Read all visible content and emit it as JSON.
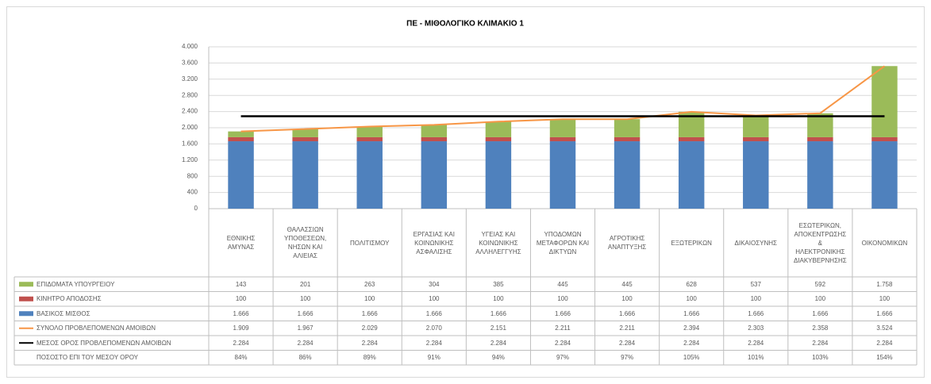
{
  "chart_data": {
    "type": "bar",
    "title": "ΠΕ - ΜΙΘΟΛΟΓΙΚΟ ΚΛΙΜΑΚΙΟ 1",
    "categories": [
      "ΕΘΝΙΚΗΣ ΑΜΥΝΑΣ",
      "ΘΑΛΑΣΣΙΩΝ ΥΠΟΘΕΣΕΩΝ, ΝΗΣΩΝ ΚΑΙ ΑΛΙΕΙΑΣ",
      "ΠΟΛΙΤΙΣΜΟΥ",
      "ΕΡΓΑΣΙΑΣ ΚΑΙ ΚΟΙΝΩΝΙΚΗΣ ΑΣΦΑΛΙΣΗΣ",
      "ΥΓΕΙΑΣ ΚΑΙ ΚΟΙΝΩΝΙΚΗΣ ΑΛΛΗΛΕΓΓΥΗΣ",
      "ΥΠΟΔΟΜΩΝ ΜΕΤΑΦΟΡΩΝ ΚΑΙ ΔΙΚΤΥΩΝ",
      "ΑΓΡΟΤΙΚΗΣ ΑΝΑΠΤΥΞΗΣ",
      "ΕΞΩΤΕΡΙΚΩΝ",
      "ΔΙΚΑΙΟΣΥΝΗΣ",
      "ΕΣΩΤΕΡΙΚΩΝ, ΑΠΟΚΕΝΤΡΩΣΗΣ & ΗΛΕΚΤΡΟΝΙΚΗΣ ΔΙΑΚΥΒΕΡΝΗΣΗΣ",
      "ΟΙΚΟΝΟΜΙΚΩΝ"
    ],
    "series": [
      {
        "name": "ΕΠΙΔΟΜΑΤΑ ΥΠΟΥΡΓΕΙΟΥ",
        "type": "bar",
        "color": "#9bbb59",
        "values": [
          143,
          201,
          263,
          304,
          385,
          445,
          445,
          628,
          537,
          592,
          1758
        ],
        "value_labels": [
          "143",
          "201",
          "263",
          "304",
          "385",
          "445",
          "445",
          "628",
          "537",
          "592",
          "1.758"
        ]
      },
      {
        "name": "ΚΙΝΗΤΡΟ ΑΠΟΔΟΣΗΣ",
        "type": "bar",
        "color": "#c0504d",
        "values": [
          100,
          100,
          100,
          100,
          100,
          100,
          100,
          100,
          100,
          100,
          100
        ],
        "value_labels": [
          "100",
          "100",
          "100",
          "100",
          "100",
          "100",
          "100",
          "100",
          "100",
          "100",
          "100"
        ]
      },
      {
        "name": "ΒΑΣΙΚΟΣ ΜΙΣΘΟΣ",
        "type": "bar",
        "color": "#4f81bd",
        "values": [
          1666,
          1666,
          1666,
          1666,
          1666,
          1666,
          1666,
          1666,
          1666,
          1666,
          1666
        ],
        "value_labels": [
          "1.666",
          "1.666",
          "1.666",
          "1.666",
          "1.666",
          "1.666",
          "1.666",
          "1.666",
          "1.666",
          "1.666",
          "1.666"
        ]
      },
      {
        "name": "ΣΥΝΟΛΟ ΠΡΟΒΛΕΠΟΜΕΝΩΝ ΑΜΟΙΒΩΝ",
        "type": "line",
        "color": "#f79646",
        "values": [
          1909,
          1967,
          2029,
          2070,
          2151,
          2211,
          2211,
          2394,
          2303,
          2358,
          3524
        ],
        "value_labels": [
          "1.909",
          "1.967",
          "2.029",
          "2.070",
          "2.151",
          "2.211",
          "2.211",
          "2.394",
          "2.303",
          "2.358",
          "3.524"
        ]
      },
      {
        "name": "ΜΕΣΟΣ ΟΡΟΣ ΠΡΟΒΛΕΠΟΜΕΝΩΝ ΑΜΟΙΒΩΝ",
        "type": "line",
        "color": "#000000",
        "values": [
          2284,
          2284,
          2284,
          2284,
          2284,
          2284,
          2284,
          2284,
          2284,
          2284,
          2284
        ],
        "value_labels": [
          "2.284",
          "2.284",
          "2.284",
          "2.284",
          "2.284",
          "2.284",
          "2.284",
          "2.284",
          "2.284",
          "2.284",
          "2.284"
        ]
      }
    ],
    "percent_row": {
      "name": "ΠΟΣΟΣΤΟ ΕΠΙ ΤΟΥ ΜΕΣΟΥ ΟΡΟΥ",
      "values": [
        84,
        86,
        89,
        91,
        94,
        97,
        97,
        105,
        101,
        103,
        154
      ],
      "value_labels": [
        "84%",
        "86%",
        "89%",
        "91%",
        "94%",
        "97%",
        "97%",
        "105%",
        "101%",
        "103%",
        "154%"
      ]
    },
    "ylim": [
      0,
      4000
    ],
    "yticks": [
      0,
      400,
      800,
      {
        "value": 1200,
        "label": "1.200"
      },
      {
        "value": 1600,
        "label": "1.600"
      },
      {
        "value": 2000,
        "label": "2.000"
      },
      {
        "value": 2400,
        "label": "2.400"
      },
      {
        "value": 2800,
        "label": "2.800"
      },
      {
        "value": 3200,
        "label": "3.200"
      },
      {
        "value": 3600,
        "label": "3.600"
      },
      {
        "value": 4000,
        "label": "4.000"
      }
    ],
    "grid": true
  }
}
